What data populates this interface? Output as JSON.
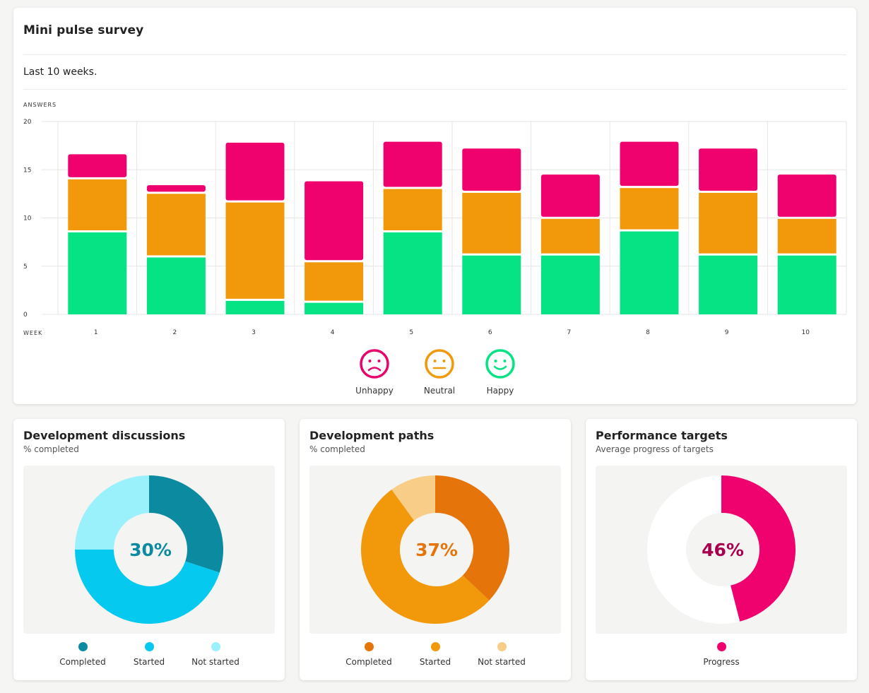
{
  "survey": {
    "title": "Mini pulse survey",
    "subtitle": "Last 10 weeks."
  },
  "chart_data": [
    {
      "type": "bar",
      "stacked": true,
      "ylabel": "ANSWERS",
      "xlabel": "WEEK",
      "ylim": [
        0,
        20
      ],
      "yticks": [
        0,
        5,
        10,
        15,
        20
      ],
      "categories": [
        "1",
        "2",
        "3",
        "4",
        "5",
        "6",
        "7",
        "8",
        "9",
        "10"
      ],
      "grid": true,
      "series": [
        {
          "name": "Happy",
          "color": "#05e384",
          "values": [
            8.5,
            5.9,
            1.4,
            1.2,
            8.5,
            6.1,
            6.1,
            8.6,
            6.1,
            6.1
          ]
        },
        {
          "name": "Neutral",
          "color": "#f2990b",
          "values": [
            5.5,
            6.6,
            10.2,
            4.2,
            4.5,
            6.5,
            3.8,
            4.5,
            6.5,
            3.8
          ]
        },
        {
          "name": "Unhappy",
          "color": "#f0026e",
          "values": [
            2.6,
            0.9,
            6.2,
            8.4,
            4.9,
            4.6,
            4.6,
            4.8,
            4.6,
            4.6
          ]
        }
      ],
      "legend": "bottom-center"
    },
    {
      "type": "pie",
      "title": "Development discussions",
      "subtitle": "% completed",
      "center_label": "30%",
      "center_color": "#0b8aa0",
      "slices": [
        {
          "name": "Completed",
          "value": 30,
          "color": "#0b8aa0"
        },
        {
          "name": "Started",
          "value": 45,
          "color": "#05c9ef"
        },
        {
          "name": "Not started",
          "value": 25,
          "color": "#9af0fb"
        }
      ]
    },
    {
      "type": "pie",
      "title": "Development paths",
      "subtitle": "% completed",
      "center_label": "37%",
      "center_color": "#e5740a",
      "slices": [
        {
          "name": "Completed",
          "value": 37,
          "color": "#e5740a"
        },
        {
          "name": "Started",
          "value": 53,
          "color": "#f2990b"
        },
        {
          "name": "Not started",
          "value": 10,
          "color": "#f7cd88"
        }
      ]
    },
    {
      "type": "pie",
      "title": "Performance targets",
      "subtitle": "Average progress of targets",
      "center_label": "46%",
      "center_color": "#a8004f",
      "slices": [
        {
          "name": "Progress",
          "value": 46,
          "color": "#f0026e"
        },
        {
          "name": "",
          "value": 54,
          "color": "#ffffff",
          "legend": false
        }
      ]
    }
  ],
  "legend_icons": [
    {
      "label": "Unhappy",
      "icon": "unhappy-face-icon",
      "color": "#e8046c"
    },
    {
      "label": "Neutral",
      "icon": "neutral-face-icon",
      "color": "#f0990b"
    },
    {
      "label": "Happy",
      "icon": "happy-face-icon",
      "color": "#05e384"
    }
  ]
}
